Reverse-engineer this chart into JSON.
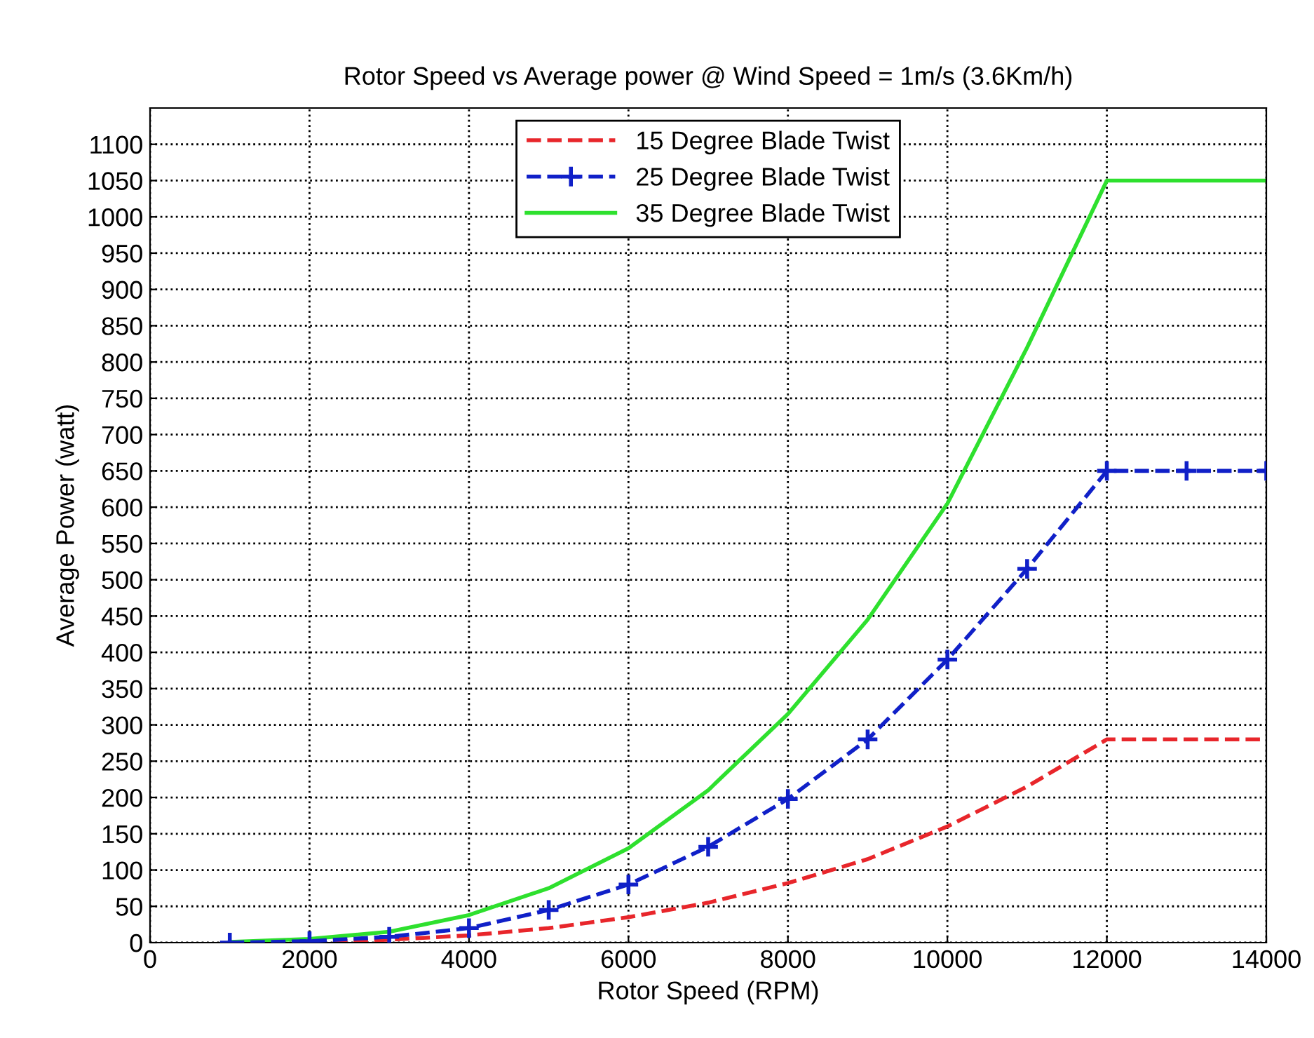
{
  "chart_data": {
    "type": "line",
    "title": "Rotor Speed vs Average power @ Wind Speed = 1m/s (3.6Km/h)",
    "xlabel": "Rotor Speed (RPM)",
    "ylabel": "Average Power (watt)",
    "x": [
      1000,
      2000,
      3000,
      4000,
      5000,
      6000,
      7000,
      8000,
      9000,
      10000,
      11000,
      12000,
      13000,
      14000
    ],
    "series": [
      {
        "name": "15 Degree Blade Twist",
        "color": "#e8262b",
        "line_style": "dashed",
        "marker": "none",
        "values": [
          0,
          1,
          4,
          10,
          20,
          35,
          55,
          82,
          115,
          160,
          215,
          280,
          280,
          280
        ]
      },
      {
        "name": "25 Degree Blade Twist",
        "color": "#1020c8",
        "line_style": "dashed",
        "marker": "cross",
        "values": [
          0,
          2,
          8,
          20,
          45,
          80,
          132,
          198,
          280,
          390,
          515,
          650,
          650,
          650
        ]
      },
      {
        "name": "35 Degree Blade Twist",
        "color": "#2ee02e",
        "line_style": "solid",
        "marker": "none",
        "values": [
          1,
          5,
          15,
          38,
          75,
          130,
          210,
          315,
          445,
          605,
          820,
          1050,
          1050,
          1050
        ]
      }
    ],
    "xlim": [
      0,
      14000
    ],
    "xticks": [
      0,
      2000,
      4000,
      6000,
      8000,
      10000,
      12000,
      14000
    ],
    "ylim": [
      0,
      1150
    ],
    "yticks": [
      0,
      50,
      100,
      150,
      200,
      250,
      300,
      350,
      400,
      450,
      500,
      550,
      600,
      650,
      700,
      750,
      800,
      850,
      900,
      950,
      1000,
      1050,
      1100
    ],
    "grid": true,
    "legend": "top"
  }
}
